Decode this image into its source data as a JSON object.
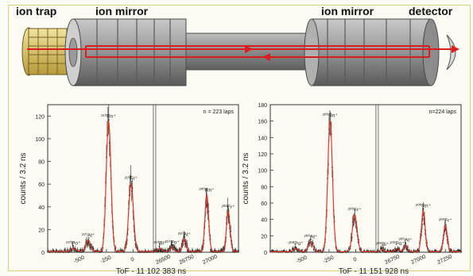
{
  "apparatus": {
    "labels": {
      "ion_trap": "ion trap",
      "ion_mirror_left": "ion mirror",
      "ion_mirror_right": "ion mirror",
      "detector": "detector"
    },
    "beam_color": "#d81e1e",
    "body_color": "#8e8e8e"
  },
  "chart_data": [
    {
      "type": "line",
      "panel": "left",
      "x_segments": [
        {
          "xlim": [
            -800,
            200
          ],
          "xticks": [
            -500,
            -250,
            0
          ]
        },
        {
          "xlim": [
            26400,
            27300
          ],
          "xticks": [
            26500,
            26750,
            27000
          ]
        }
      ],
      "xlabel": "ToF - 11 102 383 ns",
      "ylabel": "counts / 3.2 ns",
      "ylim": [
        0,
        130
      ],
      "yticks": [
        0,
        20,
        40,
        60,
        80,
        100,
        120
      ],
      "annotation": "n = 223 laps",
      "peaks": [
        {
          "segment": 0,
          "label": "²¹⁰Po⁺",
          "x": -560,
          "y": 3
        },
        {
          "segment": 0,
          "label": "²¹⁰At⁺",
          "x": -420,
          "y": 10
        },
        {
          "segment": 0,
          "label": "²¹⁰Rn⁺",
          "x": -230,
          "y": 115
        },
        {
          "segment": 0,
          "label": "²¹⁰Fr⁺",
          "x": -20,
          "y": 60
        },
        {
          "segment": 1,
          "label": "²¹⁰Bi⁺",
          "x": 26460,
          "y": 3
        },
        {
          "segment": 1,
          "label": "²¹⁰Po⁺",
          "x": 26590,
          "y": 4
        },
        {
          "segment": 1,
          "label": "²¹⁰At⁺",
          "x": 26720,
          "y": 11
        },
        {
          "segment": 1,
          "label": "²⁰⁰Rn⁺",
          "x": 26960,
          "y": 50
        },
        {
          "segment": 1,
          "label": "²⁰⁰Fr⁺",
          "x": 27190,
          "y": 35
        }
      ],
      "fit_color": "#e03a2a",
      "data_color": "#222222"
    },
    {
      "type": "line",
      "panel": "right",
      "x_segments": [
        {
          "xlim": [
            -800,
            200
          ],
          "xticks": [
            -500,
            -250,
            0
          ]
        },
        {
          "xlim": [
            26600,
            27400
          ],
          "xticks": [
            26750,
            27000,
            27250
          ]
        }
      ],
      "xlabel": "ToF - 11 151 928 ns",
      "ylabel": "counts / 3.2 ns",
      "ylim": [
        0,
        180
      ],
      "yticks": [
        0,
        20,
        40,
        60,
        80,
        100,
        120,
        140,
        160,
        180
      ],
      "annotation": "n=224 laps",
      "peaks": [
        {
          "segment": 0,
          "label": "²⁰⁰Po⁺",
          "x": -560,
          "y": 4
        },
        {
          "segment": 0,
          "label": "²⁰⁰At⁺",
          "x": -420,
          "y": 12
        },
        {
          "segment": 0,
          "label": "²⁰⁰Rn⁺",
          "x": -240,
          "y": 160
        },
        {
          "segment": 0,
          "label": "²⁰⁰Fr⁺",
          "x": -10,
          "y": 45
        },
        {
          "segment": 1,
          "label": "²⁰⁰Bi⁺",
          "x": 26650,
          "y": 3
        },
        {
          "segment": 1,
          "label": "²⁰⁰Po⁺",
          "x": 26790,
          "y": 4
        },
        {
          "segment": 1,
          "label": "²⁰⁰At⁺",
          "x": 26870,
          "y": 8
        },
        {
          "segment": 1,
          "label": "²⁰⁰Rn⁺",
          "x": 27040,
          "y": 50
        },
        {
          "segment": 1,
          "label": "²⁰⁰Fr⁺",
          "x": 27250,
          "y": 32
        }
      ],
      "fit_color": "#e03a2a",
      "data_color": "#222222"
    }
  ]
}
